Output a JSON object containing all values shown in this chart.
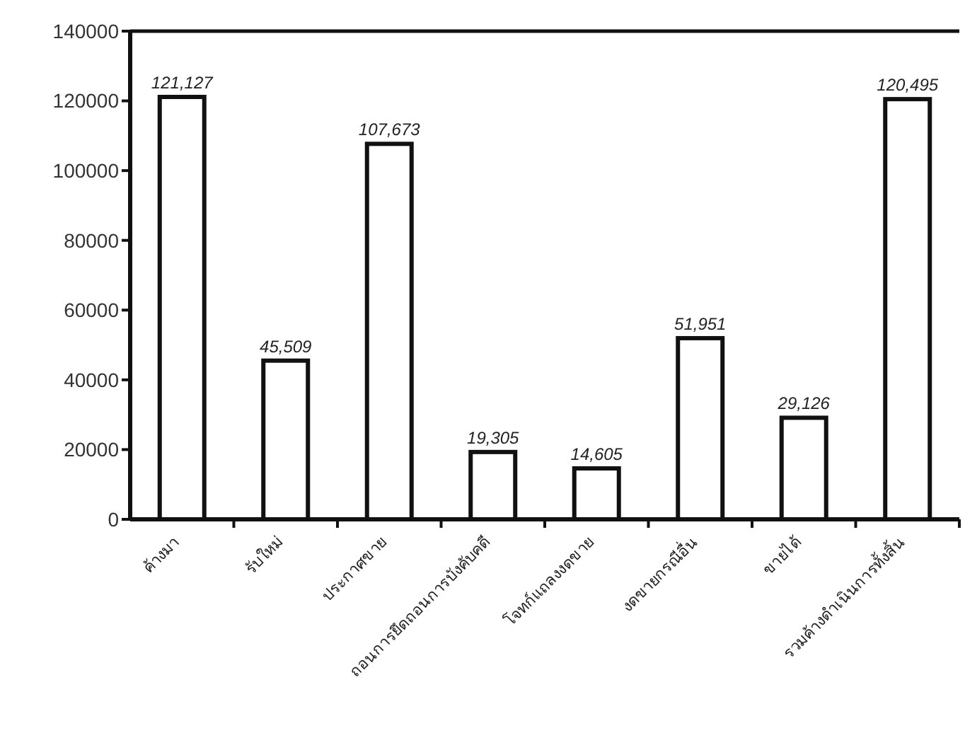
{
  "chart_data": {
    "type": "bar",
    "categories": [
      "ค้างมา",
      "รับใหม่",
      "ประกาศขาย",
      "ถอนการยึดถอนการบังคับคดี",
      "โจทก์แถลงงดขาย",
      "งดขายกรณีอื่น",
      "ขายได้",
      "รวมค้างดำเนินการทั้งสิ้น"
    ],
    "values": [
      121127,
      45509,
      107673,
      19305,
      14605,
      51951,
      29126,
      120495
    ],
    "value_labels": [
      "121,127",
      "45,509",
      "107,673",
      "19,305",
      "14,605",
      "51,951",
      "29,126",
      "120,495"
    ],
    "color": "#ffffff",
    "ylim": [
      0,
      140000
    ],
    "yticks": [
      0,
      20000,
      40000,
      60000,
      80000,
      100000,
      120000,
      140000
    ]
  }
}
